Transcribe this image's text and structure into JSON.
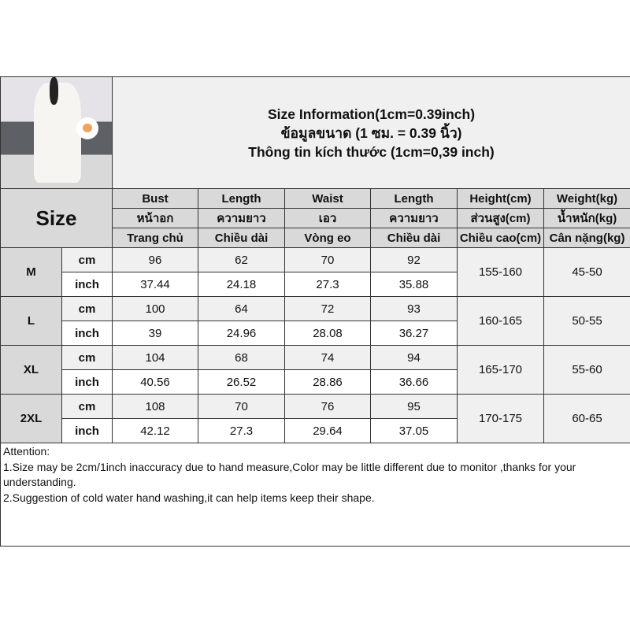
{
  "title": {
    "line1": "Size Information(1cm=0.39inch)",
    "line2": "ข้อมูลขนาด (1 ซม. = 0.39 นิ้ว)",
    "line3": "Thông tin kích thước (1cm=0,39 inch)"
  },
  "size_label": "Size",
  "columns": [
    {
      "en": "Bust",
      "th": "หน้าอก",
      "vi": "Trang chủ"
    },
    {
      "en": "Length",
      "th": "ความยาว",
      "vi": "Chiều dài"
    },
    {
      "en": "Waist",
      "th": "เอว",
      "vi": "Vòng eo"
    },
    {
      "en": "Length",
      "th": "ความยาว",
      "vi": "Chiều dài"
    },
    {
      "en": "Height(cm)",
      "th": "ส่วนสูง(cm)",
      "vi": "Chiều cao(cm)"
    },
    {
      "en": "Weight(kg)",
      "th": "น้ำหนัก(kg)",
      "vi": "Cân nặng(kg)"
    }
  ],
  "units": {
    "cm": "cm",
    "inch": "inch"
  },
  "sizes": [
    {
      "size": "M",
      "cm": [
        "96",
        "62",
        "70",
        "92"
      ],
      "inch": [
        "37.44",
        "24.18",
        "27.3",
        "35.88"
      ],
      "height": "155-160",
      "weight": "45-50"
    },
    {
      "size": "L",
      "cm": [
        "100",
        "64",
        "72",
        "93"
      ],
      "inch": [
        "39",
        "24.96",
        "28.08",
        "36.27"
      ],
      "height": "160-165",
      "weight": "50-55"
    },
    {
      "size": "XL",
      "cm": [
        "104",
        "68",
        "74",
        "94"
      ],
      "inch": [
        "40.56",
        "26.52",
        "28.86",
        "36.66"
      ],
      "height": "165-170",
      "weight": "55-60"
    },
    {
      "size": "2XL",
      "cm": [
        "108",
        "70",
        "76",
        "95"
      ],
      "inch": [
        "42.12",
        "27.3",
        "29.64",
        "37.05"
      ],
      "height": "170-175",
      "weight": "60-65"
    }
  ],
  "attention": {
    "heading": "Attention:",
    "notes": [
      "1.Size may be 2cm/1inch inaccuracy due to hand measure,Color may be little different due to monitor ,thanks for your understanding.",
      "2.Suggestion of cold water hand washing,it can help items keep their shape."
    ]
  }
}
